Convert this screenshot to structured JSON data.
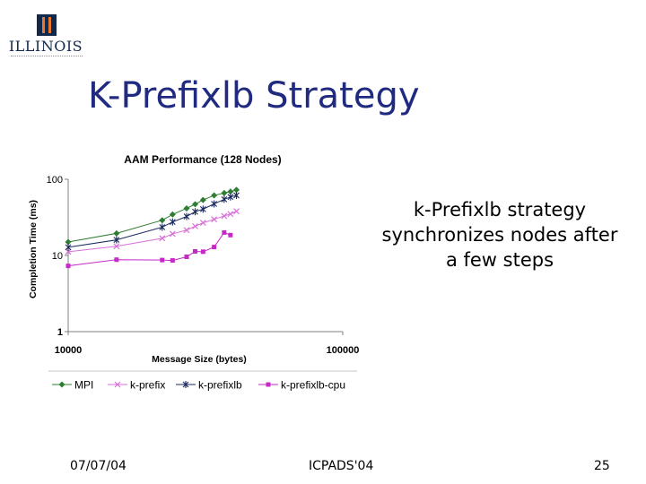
{
  "logo": {
    "text": "ILLINOIS",
    "tagline": "UNIVERSITY OF ILLINOIS AT URBANA-CHAMPAIGN"
  },
  "slide": {
    "title": "K-Prefixlb Strategy",
    "body": "k-Prefixlb strategy synchronizes nodes after a few steps"
  },
  "footer": {
    "date": "07/07/04",
    "conference": "ICPADS'04",
    "page": "25"
  },
  "colors": {
    "title": "#1f2a80",
    "logo": "#13294b",
    "accent": "#e8772e"
  },
  "chart_data": {
    "type": "line",
    "title": "AAM Performance (128 Nodes)",
    "xlabel": "Message Size (bytes)",
    "ylabel": "Completion Time (ms)",
    "x_scale": "log",
    "y_scale": "log",
    "xlim": [
      10000,
      100000
    ],
    "ylim": [
      1,
      100
    ],
    "x_ticks": [
      "10000",
      "100000"
    ],
    "y_ticks": [
      "1",
      "10",
      "100"
    ],
    "grid": false,
    "legend_position": "bottom",
    "x": [
      10000,
      15000,
      22000,
      24000,
      27000,
      29000,
      31000,
      34000,
      37000,
      39000,
      41000
    ],
    "series": [
      {
        "name": "MPI",
        "color": "#2e7d32",
        "marker": "diamond",
        "values": [
          15.0,
          19.5,
          29.0,
          34.5,
          41.5,
          47.0,
          53.5,
          61.5,
          66.0,
          69.0,
          72.5
        ]
      },
      {
        "name": "k-prefix",
        "color": "#d86fd8",
        "marker": "x",
        "values": [
          11.2,
          13.2,
          16.8,
          19.2,
          21.5,
          24.2,
          26.8,
          29.8,
          33.0,
          35.0,
          38.0
        ]
      },
      {
        "name": "k-prefixlb",
        "color": "#1a2a5e",
        "marker": "star",
        "values": [
          12.8,
          16.0,
          23.5,
          27.5,
          32.5,
          37.5,
          40.5,
          47.5,
          54.5,
          58.5,
          61.5
        ]
      },
      {
        "name": "k-prefixlb-cpu",
        "color": "#c62ac6",
        "marker": "square",
        "values": [
          7.3,
          8.8,
          8.7,
          8.6,
          9.6,
          11.3,
          11.2,
          12.9,
          20.0,
          18.5,
          null
        ]
      }
    ]
  }
}
